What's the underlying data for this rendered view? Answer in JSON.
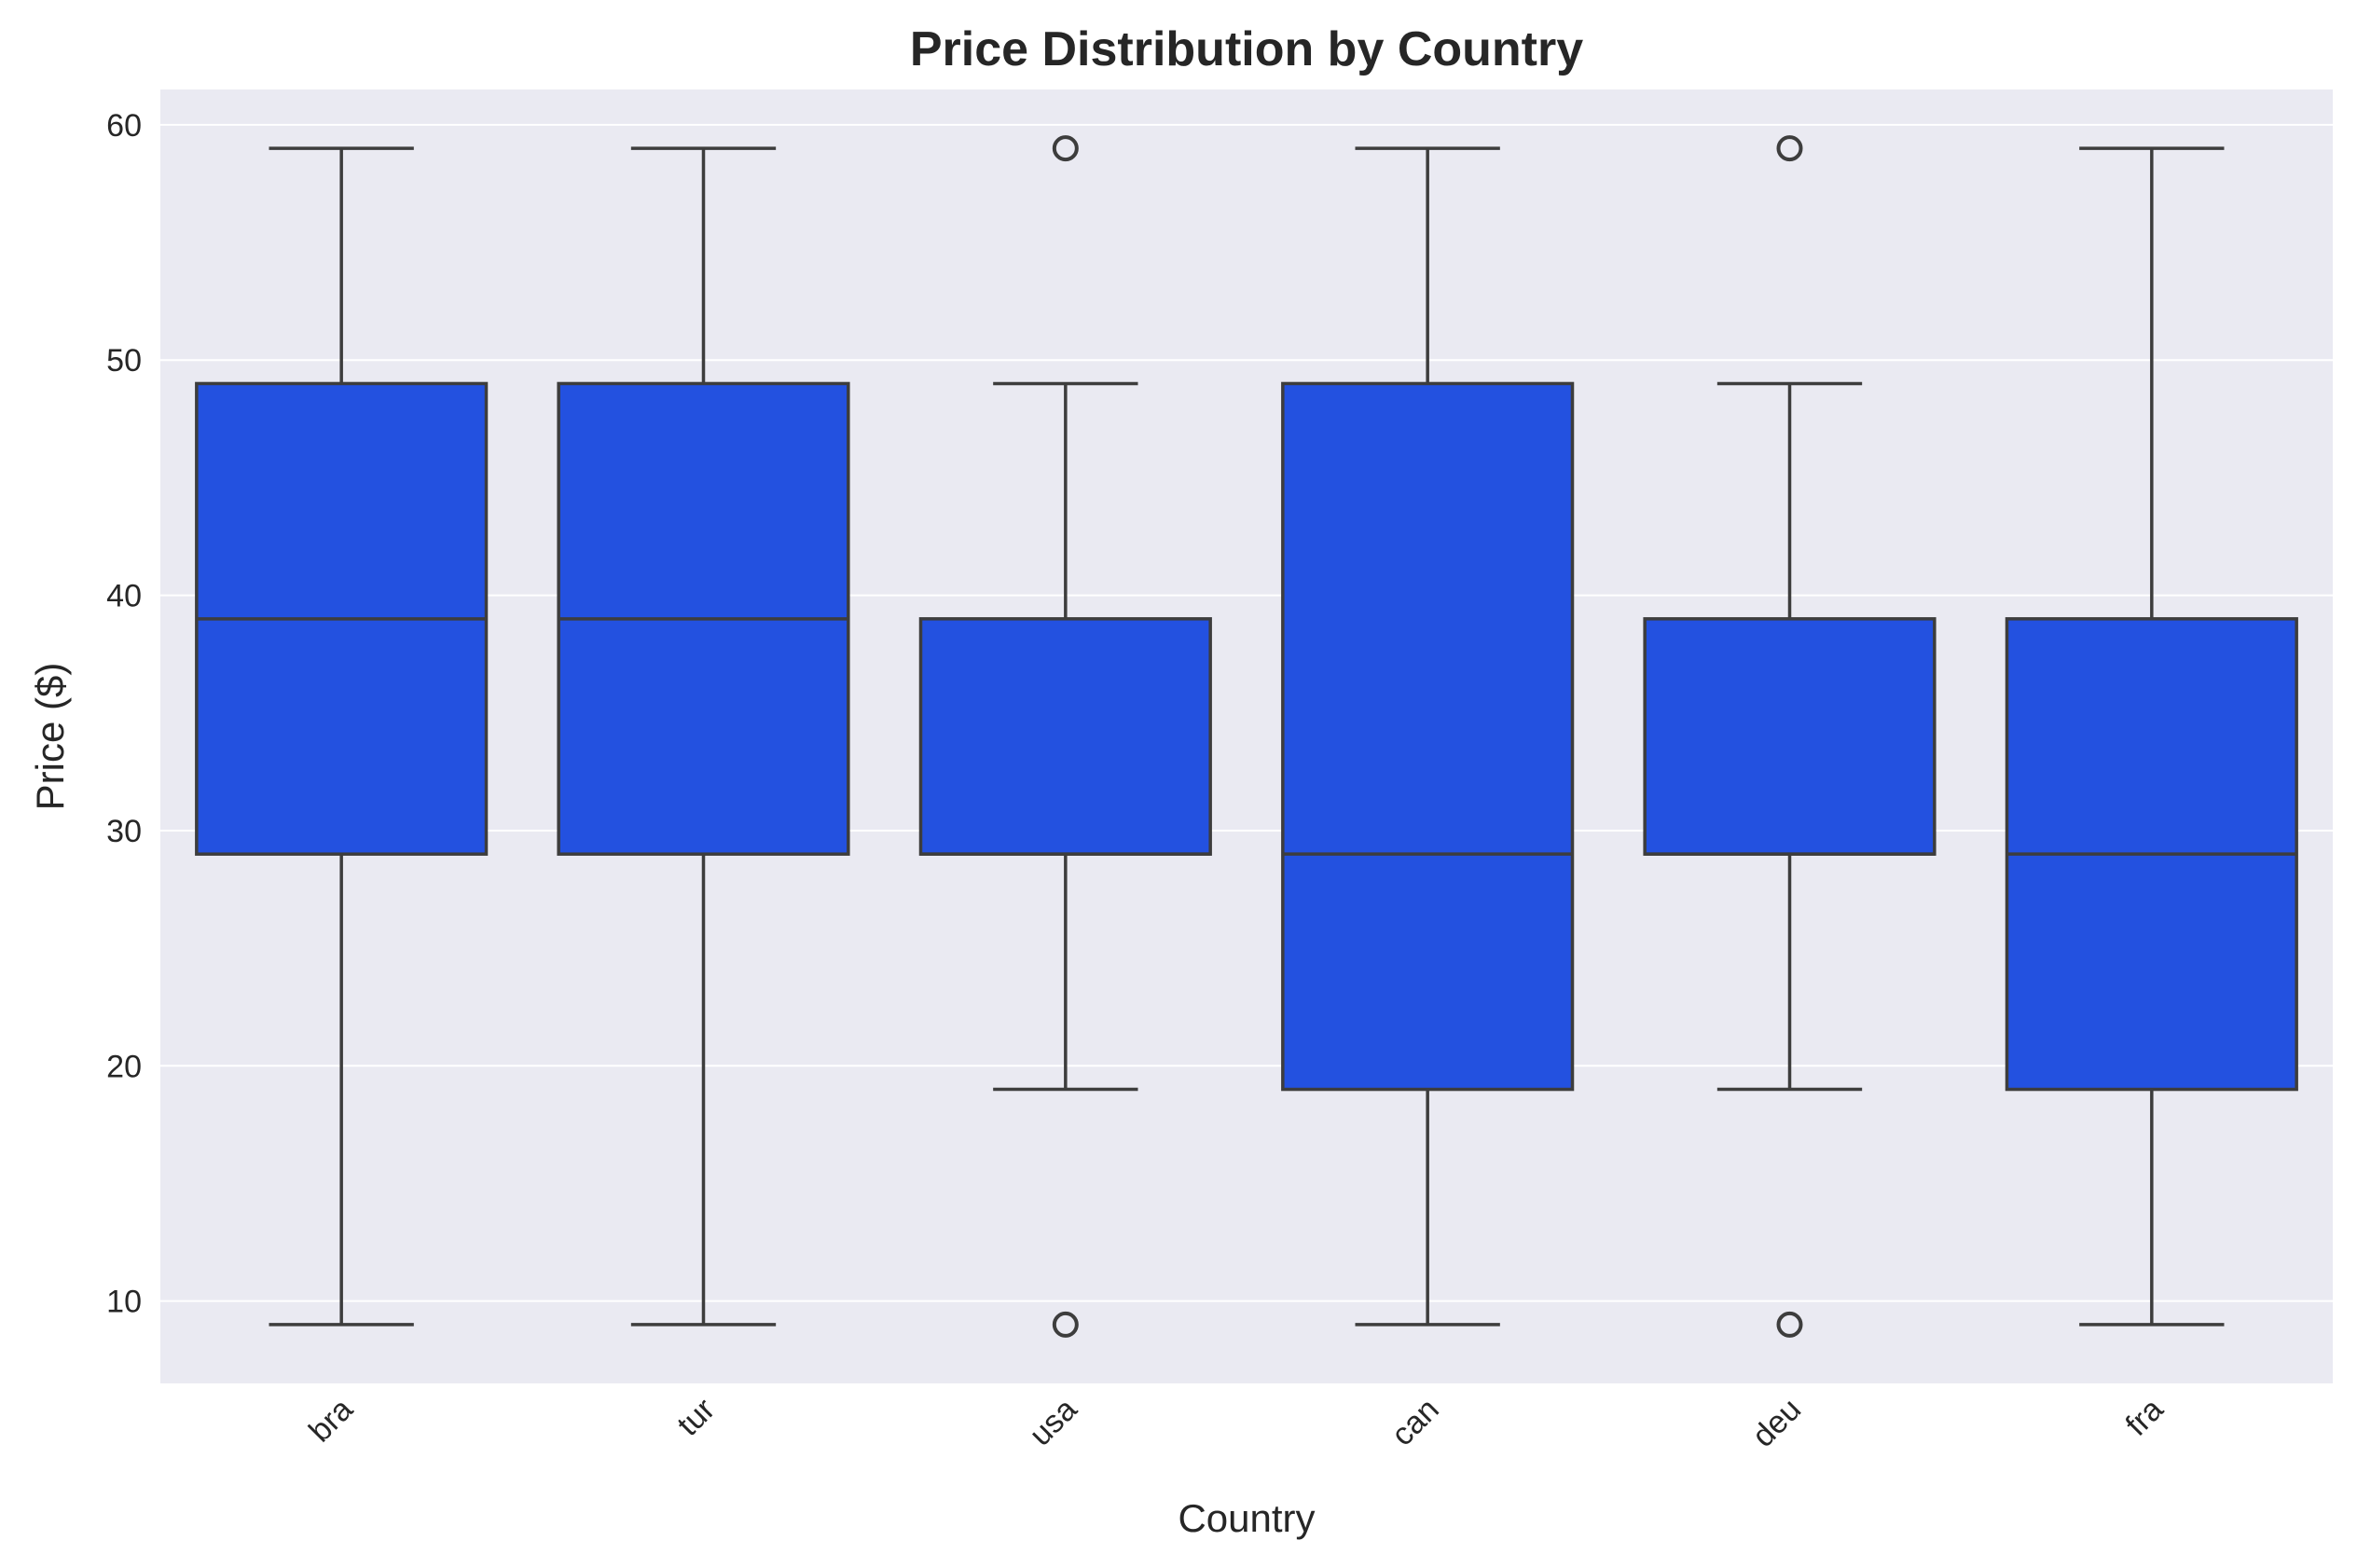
{
  "chart_data": {
    "type": "box",
    "title": "Price Distribution by Country",
    "xlabel": "Country",
    "ylabel": "Price ($)",
    "ylim": [
      6.5,
      61.5
    ],
    "yticks": [
      10,
      20,
      30,
      40,
      50,
      60
    ],
    "grid": true,
    "categories": [
      "bra",
      "tur",
      "usa",
      "can",
      "deu",
      "fra"
    ],
    "boxes": [
      {
        "category": "bra",
        "whisker_low": 9,
        "q1": 29,
        "median": 39,
        "q3": 49,
        "whisker_high": 59,
        "outliers": []
      },
      {
        "category": "tur",
        "whisker_low": 9,
        "q1": 29,
        "median": 39,
        "q3": 49,
        "whisker_high": 59,
        "outliers": []
      },
      {
        "category": "usa",
        "whisker_low": 19,
        "q1": 29,
        "median": 29,
        "q3": 39,
        "whisker_high": 49,
        "outliers": [
          9,
          59
        ]
      },
      {
        "category": "can",
        "whisker_low": 9,
        "q1": 19,
        "median": 29,
        "q3": 49,
        "whisker_high": 59,
        "outliers": []
      },
      {
        "category": "deu",
        "whisker_low": 19,
        "q1": 29,
        "median": 29,
        "q3": 39,
        "whisker_high": 49,
        "outliers": [
          9,
          59
        ]
      },
      {
        "category": "fra",
        "whisker_low": 9,
        "q1": 19,
        "median": 29,
        "q3": 39,
        "whisker_high": 59,
        "outliers": []
      }
    ]
  },
  "colors": {
    "plot_background": "#eaeaf2",
    "grid": "#ffffff",
    "box_fill": "#2351e0",
    "box_edge": "#3d3d3d"
  }
}
